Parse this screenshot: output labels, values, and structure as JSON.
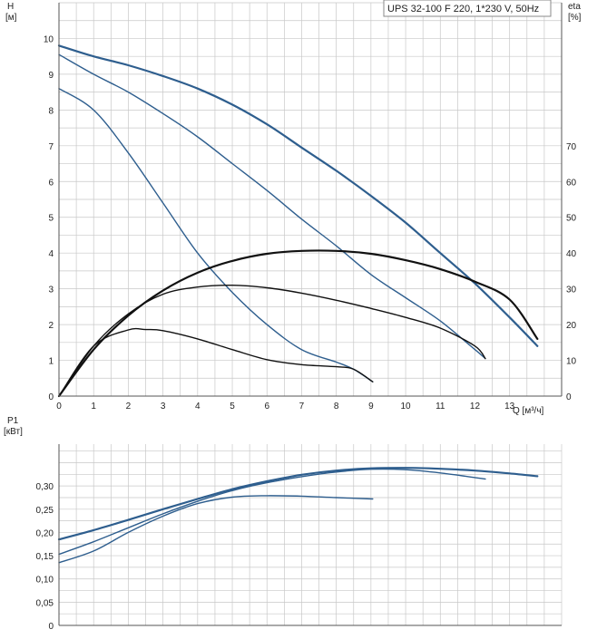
{
  "title": "UPS 32-100 F 220, 1*230 V, 50Hz",
  "colors": {
    "blue": "#2e5e8e",
    "black": "#111111",
    "grid": "#c8c8c8",
    "axis": "#555555"
  },
  "chart_data": [
    {
      "type": "line",
      "name": "head-efficiency",
      "xlabel": "Q [м³/ч]",
      "ylabel": "H",
      "ylabel_unit": "[м]",
      "y2label": "eta",
      "y2label_unit": "[%]",
      "xlim": [
        0,
        14.5
      ],
      "ylim": [
        0,
        11
      ],
      "y2lim": [
        0,
        110
      ],
      "x_ticks": [
        0,
        1,
        2,
        3,
        4,
        5,
        6,
        7,
        8,
        9,
        10,
        11,
        12,
        13
      ],
      "y_ticks": [
        0,
        1,
        2,
        3,
        4,
        5,
        6,
        7,
        8,
        9,
        10
      ],
      "y2_ticks": [
        0,
        10,
        20,
        30,
        40,
        50,
        60,
        70
      ],
      "grid": true,
      "series": [
        {
          "axis": "y",
          "color": "blue",
          "width": 2.2,
          "x": [
            0,
            1,
            2,
            3,
            4,
            5,
            6,
            7,
            8,
            9,
            10,
            11,
            12,
            13,
            13.8
          ],
          "y": [
            9.8,
            9.5,
            9.25,
            8.95,
            8.6,
            8.15,
            7.6,
            6.95,
            6.3,
            5.6,
            4.85,
            4.0,
            3.15,
            2.2,
            1.4
          ]
        },
        {
          "axis": "y",
          "color": "blue",
          "width": 1.4,
          "x": [
            0,
            1,
            2,
            3,
            4,
            5,
            6,
            7,
            8,
            9,
            10,
            11,
            12,
            12.3
          ],
          "y": [
            9.55,
            9.0,
            8.5,
            7.9,
            7.25,
            6.5,
            5.75,
            4.95,
            4.2,
            3.4,
            2.75,
            2.1,
            1.3,
            1.05
          ]
        },
        {
          "axis": "y",
          "color": "blue",
          "width": 1.4,
          "x": [
            0,
            1,
            2,
            3,
            4,
            5,
            6,
            7,
            8,
            8.5,
            9.05
          ],
          "y": [
            8.6,
            8.0,
            6.8,
            5.4,
            4.0,
            2.9,
            2.0,
            1.3,
            0.95,
            0.75,
            0.4
          ]
        },
        {
          "axis": "y2",
          "color": "black",
          "width": 2.2,
          "x": [
            0,
            1,
            2,
            3,
            4,
            5,
            6,
            7,
            8,
            9,
            10,
            11,
            12,
            13,
            13.8
          ],
          "y": [
            0,
            13,
            22.5,
            29.5,
            34.5,
            37.8,
            39.8,
            40.6,
            40.6,
            39.8,
            38,
            35.5,
            32,
            27,
            16
          ]
        },
        {
          "axis": "y2",
          "color": "black",
          "width": 1.4,
          "x": [
            0,
            1,
            2,
            3,
            4,
            5,
            6,
            7,
            8,
            9,
            10,
            11,
            12,
            12.3
          ],
          "y": [
            0,
            14,
            23,
            28.5,
            30.5,
            31,
            30.3,
            28.8,
            26.8,
            24.5,
            22,
            19,
            14,
            10.5
          ]
        },
        {
          "axis": "y2",
          "color": "black",
          "width": 1.4,
          "x": [
            0,
            1,
            2,
            2.5,
            3,
            4,
            5,
            6,
            7,
            8,
            8.5,
            9.05
          ],
          "y": [
            0,
            14,
            18.5,
            18.6,
            18.3,
            16,
            13,
            10.2,
            8.8,
            8.2,
            7.5,
            4
          ]
        }
      ]
    },
    {
      "type": "line",
      "name": "power",
      "ylabel": "P1",
      "ylabel_unit": "[кВт]",
      "xlim": [
        0,
        14.5
      ],
      "ylim": [
        0,
        0.39
      ],
      "y_ticks": [
        0,
        0.05,
        0.1,
        0.15,
        0.2,
        0.25,
        0.3
      ],
      "y_tick_labels": [
        "0",
        "0,05",
        "0,10",
        "0,15",
        "0,20",
        "0,25",
        "0,30"
      ],
      "grid": true,
      "series": [
        {
          "color": "blue",
          "width": 2.2,
          "x": [
            0,
            1,
            2,
            3,
            4,
            5,
            6,
            7,
            8,
            9,
            10,
            11,
            12,
            13,
            13.8
          ],
          "y": [
            0.185,
            0.205,
            0.227,
            0.25,
            0.272,
            0.293,
            0.31,
            0.324,
            0.333,
            0.338,
            0.339,
            0.337,
            0.333,
            0.327,
            0.321
          ]
        },
        {
          "color": "blue",
          "width": 1.4,
          "x": [
            0,
            1,
            2,
            3,
            4,
            5,
            6,
            7,
            8,
            9,
            10,
            11,
            12,
            12.3
          ],
          "y": [
            0.153,
            0.18,
            0.21,
            0.24,
            0.267,
            0.29,
            0.307,
            0.32,
            0.33,
            0.336,
            0.335,
            0.328,
            0.318,
            0.315
          ]
        },
        {
          "color": "blue",
          "width": 1.4,
          "x": [
            0,
            1,
            2,
            3,
            4,
            5,
            6,
            7,
            8,
            9.05
          ],
          "y": [
            0.135,
            0.16,
            0.2,
            0.235,
            0.262,
            0.276,
            0.279,
            0.278,
            0.275,
            0.272
          ]
        }
      ]
    }
  ]
}
